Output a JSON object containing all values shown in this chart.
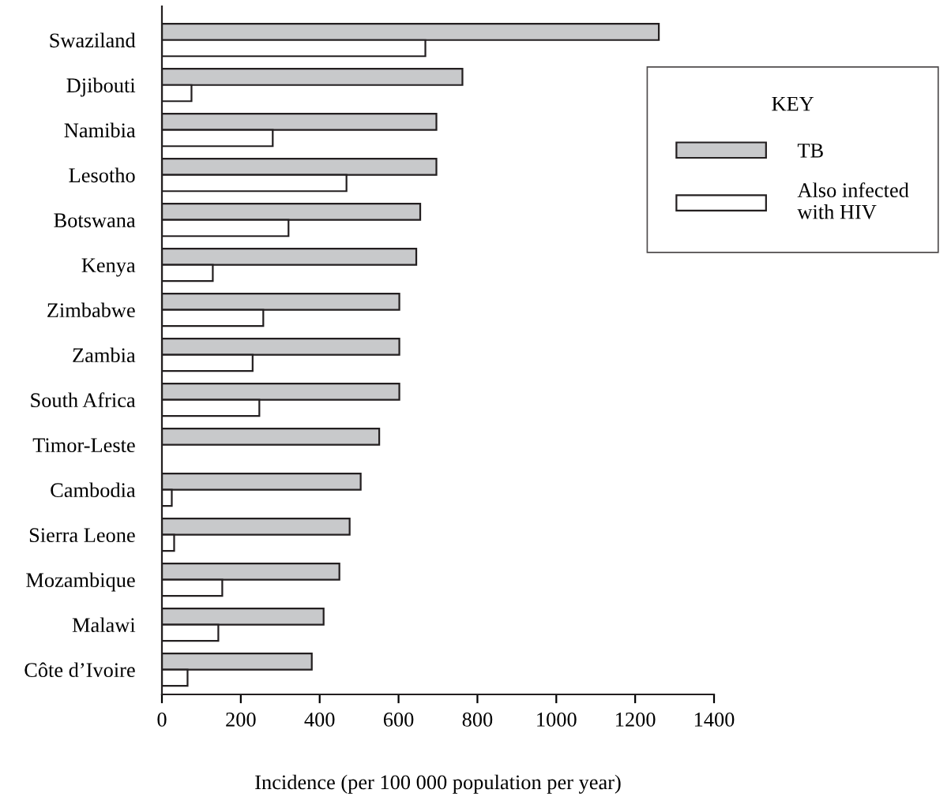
{
  "chart_data": {
    "type": "bar",
    "orientation": "horizontal",
    "categories": [
      "Swaziland",
      "Djibouti",
      "Namibia",
      "Lesotho",
      "Botswana",
      "Kenya",
      "Zimbabwe",
      "Zambia",
      "South Africa",
      "Timor-Leste",
      "Cambodia",
      "Sierra Leone",
      "Mozambique",
      "Malawi",
      "Côte d’Ivoire"
    ],
    "series": [
      {
        "name": "TB",
        "color": "#c8c9cb",
        "values": [
          1260,
          762,
          696,
          696,
          655,
          645,
          602,
          602,
          602,
          551,
          504,
          476,
          450,
          410,
          380
        ]
      },
      {
        "name": "Also infected\nwith HIV",
        "color": "#ffffff",
        "values": [
          668,
          75,
          281,
          468,
          321,
          129,
          257,
          230,
          247,
          null,
          25,
          31,
          153,
          143,
          65
        ]
      }
    ],
    "xlabel": "Incidence (per 100 000 population per year)",
    "xlim": [
      0,
      1400
    ],
    "xticks": [
      0,
      200,
      400,
      600,
      800,
      1000,
      1200,
      1400
    ],
    "legend": "top right",
    "legend_title": "KEY",
    "grid": false
  }
}
